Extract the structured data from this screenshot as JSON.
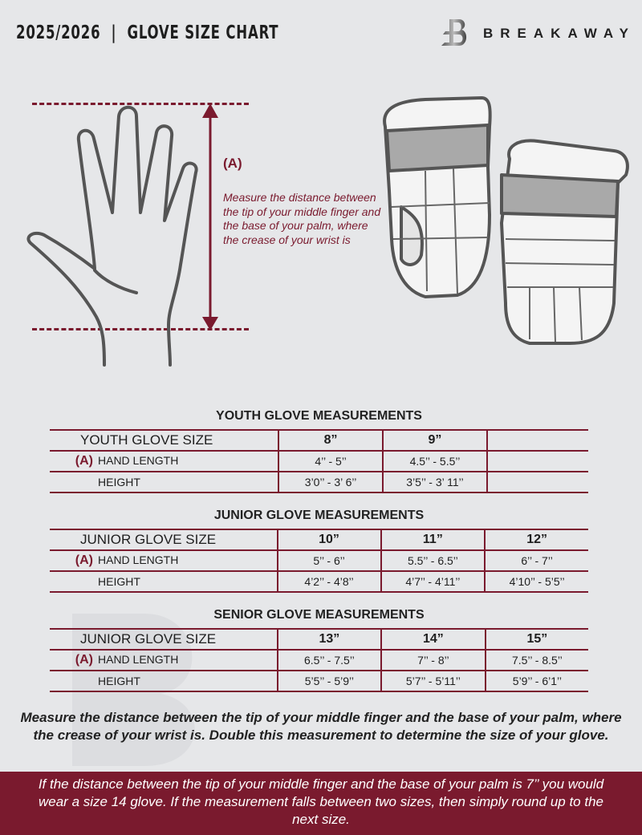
{
  "header": {
    "title": "2025/2026  |  GLOVE SIZE CHART",
    "brand": "BREAKAWAY",
    "brand_logo_letter": "B"
  },
  "colors": {
    "accent": "#7a1a2e",
    "background": "#e6e7e9"
  },
  "measure": {
    "label": "(A)",
    "note": "Measure the distance between the tip of your middle finger and the base of your palm, where the crease of your wrist is"
  },
  "tables": {
    "youth": {
      "title": "YOUTH GLOVE MEASUREMENTS",
      "size_label": "YOUTH GLOVE SIZE",
      "sizes": [
        "8”",
        "9”",
        ""
      ],
      "a_label": "(A)",
      "hand_label": "HAND LENGTH",
      "hand": [
        "4’’ - 5’’",
        "4.5’’ - 5.5’’",
        ""
      ],
      "height_label": "HEIGHT",
      "height": [
        "3’0’’ - 3’ 6’’",
        "3’5’’ - 3’ 11’’",
        ""
      ]
    },
    "junior": {
      "title": "JUNIOR GLOVE MEASUREMENTS",
      "size_label": "JUNIOR GLOVE SIZE",
      "sizes": [
        "10”",
        "11”",
        "12”"
      ],
      "a_label": "(A)",
      "hand_label": "HAND LENGTH",
      "hand": [
        "5’’ - 6’’",
        "5.5’’ - 6.5’’",
        "6’’ - 7’’"
      ],
      "height_label": "HEIGHT",
      "height": [
        "4’2’’ - 4’8’’",
        "4’7’’ - 4’11’’",
        "4’10’’ - 5’5’’"
      ]
    },
    "senior": {
      "title": "SENIOR GLOVE MEASUREMENTS",
      "size_label": "JUNIOR GLOVE SIZE",
      "sizes": [
        "13”",
        "14”",
        "15”"
      ],
      "a_label": "(A)",
      "hand_label": "HAND LENGTH",
      "hand": [
        "6.5’’ - 7.5’’",
        "7’’ - 8’’",
        "7.5’’ - 8.5’’"
      ],
      "height_label": "HEIGHT",
      "height": [
        "5’5’’ - 5’9’’",
        "5’7’’ - 5’11’’",
        "5’9’’ - 6’1’’"
      ]
    }
  },
  "footer": {
    "instruction": "Measure the distance between the tip of your middle finger and the base of your palm, where the crease of your wrist is. Double this measurement to determine the size of your glove.",
    "example": "If the distance between the tip of your middle finger and the base of your palm is 7’’ you would wear a size 14 glove. If the measurement falls between two sizes, then simply round up to the next size."
  }
}
